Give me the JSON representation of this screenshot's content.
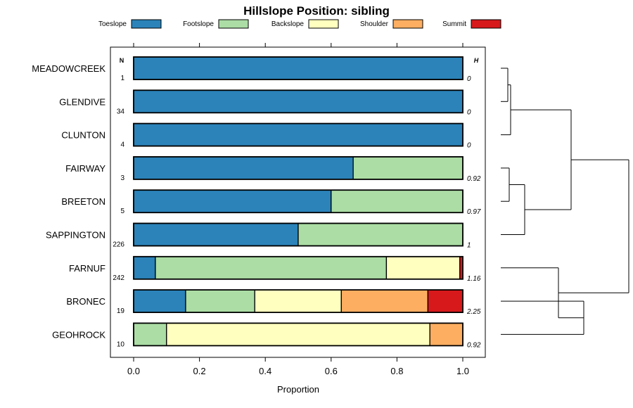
{
  "chart_data": {
    "type": "bar",
    "orientation": "horizontal-stacked",
    "title": "Hillslope Position: sibling",
    "xlabel": "Proportion",
    "ylabel": "",
    "xlim": [
      0,
      1
    ],
    "xticks": [
      "0.0",
      "0.2",
      "0.4",
      "0.6",
      "0.8",
      "1.0"
    ],
    "n_header": "N",
    "h_header": "H",
    "legend": [
      {
        "name": "Toeslope",
        "color": "#2b83ba"
      },
      {
        "name": "Footslope",
        "color": "#abdda4"
      },
      {
        "name": "Backslope",
        "color": "#ffffbf"
      },
      {
        "name": "Shoulder",
        "color": "#fdae61"
      },
      {
        "name": "Summit",
        "color": "#d7191c"
      }
    ],
    "categories": [
      "MEADOWCREEK",
      "GLENDIVE",
      "CLUNTON",
      "FAIRWAY",
      "BREETON",
      "SAPPINGTON",
      "FARNUF",
      "BRONEC",
      "GEOHROCK"
    ],
    "n": [
      "1",
      "34",
      "4",
      "3",
      "5",
      "226",
      "242",
      "19",
      "10"
    ],
    "h": [
      "0",
      "0",
      "0",
      "0.92",
      "0.97",
      "1",
      "1.16",
      "2.25",
      "0.92"
    ],
    "series": [
      {
        "name": "Toeslope",
        "values": [
          1.0,
          1.0,
          1.0,
          0.667,
          0.6,
          0.5,
          0.066,
          0.158,
          0.0
        ]
      },
      {
        "name": "Footslope",
        "values": [
          0.0,
          0.0,
          0.0,
          0.333,
          0.4,
          0.5,
          0.702,
          0.21,
          0.1
        ]
      },
      {
        "name": "Backslope",
        "values": [
          0.0,
          0.0,
          0.0,
          0.0,
          0.0,
          0.0,
          0.223,
          0.263,
          0.8
        ]
      },
      {
        "name": "Shoulder",
        "values": [
          0.0,
          0.0,
          0.0,
          0.0,
          0.0,
          0.0,
          0.0,
          0.263,
          0.1
        ]
      },
      {
        "name": "Summit",
        "values": [
          0.0,
          0.0,
          0.0,
          0.0,
          0.0,
          0.0,
          0.009,
          0.106,
          0.0
        ]
      }
    ],
    "dendrogram": {
      "labels": [
        "MEADOWCREEK",
        "GLENDIVE",
        "CLUNTON",
        "FAIRWAY",
        "BREETON",
        "SAPPINGTON",
        "FARNUF",
        "BRONEC",
        "GEOHROCK"
      ],
      "merges": [
        {
          "a": "MEADOWCREEK",
          "b": "GLENDIVE",
          "height": 0.05
        },
        {
          "a": "m1",
          "b": "CLUNTON",
          "height": 0.07
        },
        {
          "a": "FAIRWAY",
          "b": "BREETON",
          "height": 0.06
        },
        {
          "a": "m3",
          "b": "SAPPINGTON",
          "height": 0.17
        },
        {
          "a": "m2",
          "b": "m4",
          "height": 0.5
        },
        {
          "a": "BRONEC",
          "b": "GEOHROCK",
          "height": 0.59
        },
        {
          "a": "FARNUF",
          "b": "m6",
          "height": 0.41
        },
        {
          "a": "m5",
          "b": "m7",
          "height": 0.91
        }
      ]
    }
  }
}
